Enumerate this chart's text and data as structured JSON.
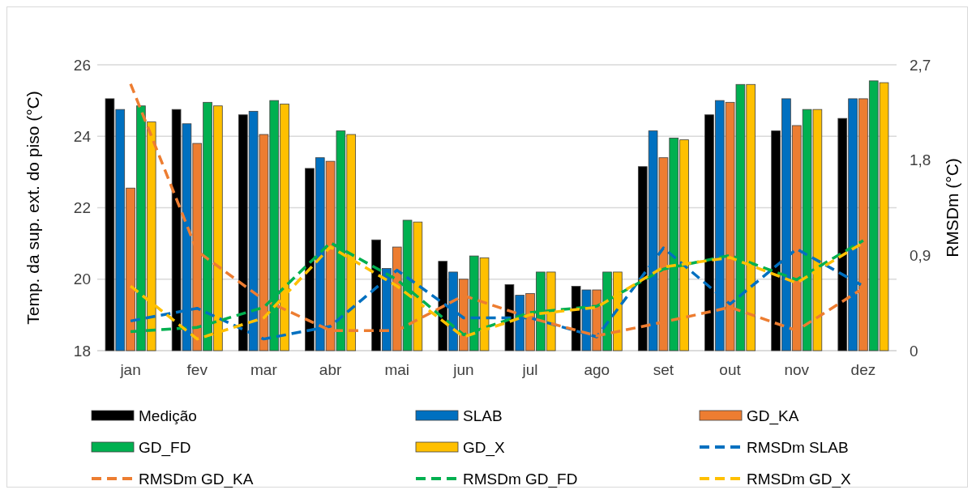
{
  "chart_data": {
    "type": "bar",
    "ylabel": "Temp. da sup. ext. do piso (°C)",
    "y2label": "RMSDm (°C)",
    "categories": [
      "jan",
      "fev",
      "mar",
      "abr",
      "mai",
      "jun",
      "jul",
      "ago",
      "set",
      "out",
      "nov",
      "dez"
    ],
    "ylim": [
      18,
      26
    ],
    "yticks": [
      18,
      20,
      22,
      24,
      26
    ],
    "y2lim": [
      0,
      2.7
    ],
    "y2ticks": [
      0,
      {
        "value": 0.9,
        "label": "0,9"
      },
      {
        "value": 1.8,
        "label": "1,8"
      },
      {
        "value": 2.7,
        "label": "2,7"
      }
    ],
    "grid": "y",
    "legend": "bottom",
    "line_style": "dashed",
    "series": [
      {
        "name": "Medição",
        "color": "#000000",
        "values": [
          25.05,
          24.75,
          24.6,
          23.1,
          21.1,
          20.5,
          19.85,
          19.8,
          23.15,
          24.6,
          24.15,
          24.5
        ]
      },
      {
        "name": "SLAB",
        "color": "#0070c0",
        "values": [
          24.75,
          24.35,
          24.7,
          23.4,
          20.3,
          20.2,
          19.55,
          19.7,
          24.15,
          25.0,
          25.05,
          25.05
        ]
      },
      {
        "name": "GD_KA",
        "color": "#ed7d31",
        "values": [
          22.55,
          23.8,
          24.05,
          23.3,
          20.9,
          20.0,
          19.6,
          19.7,
          23.4,
          24.95,
          24.3,
          25.05
        ]
      },
      {
        "name": "GD_FD",
        "color": "#00b050",
        "values": [
          24.85,
          24.95,
          25.0,
          24.15,
          21.65,
          20.65,
          20.2,
          20.2,
          23.95,
          25.45,
          24.75,
          25.55
        ]
      },
      {
        "name": "GD_X",
        "color": "#ffc000",
        "values": [
          24.4,
          24.85,
          24.9,
          24.05,
          21.6,
          20.6,
          20.2,
          20.2,
          23.9,
          25.45,
          24.75,
          25.5
        ]
      },
      {
        "name": "RMSDm SLAB",
        "type": "line",
        "axis": "y2",
        "color": "#0070c0",
        "values": [
          0.28,
          0.4,
          0.11,
          0.23,
          0.76,
          0.31,
          0.31,
          0.13,
          0.97,
          0.44,
          0.96,
          0.61
        ]
      },
      {
        "name": "RMSDm GD_KA",
        "type": "line",
        "axis": "y2",
        "color": "#ed7d31",
        "values": [
          2.52,
          0.94,
          0.48,
          0.19,
          0.19,
          0.52,
          0.31,
          0.14,
          0.27,
          0.41,
          0.19,
          0.59
        ]
      },
      {
        "name": "RMSDm GD_FD",
        "type": "line",
        "axis": "y2",
        "color": "#00b050",
        "values": [
          0.18,
          0.22,
          0.41,
          1.02,
          0.67,
          0.15,
          0.36,
          0.42,
          0.77,
          0.9,
          0.67,
          1.04
        ]
      },
      {
        "name": "RMSDm GD_X",
        "type": "line",
        "axis": "y2",
        "color": "#ffc000",
        "values": [
          0.61,
          0.11,
          0.31,
          0.98,
          0.61,
          0.13,
          0.34,
          0.41,
          0.79,
          0.88,
          0.64,
          1.02
        ]
      }
    ]
  }
}
